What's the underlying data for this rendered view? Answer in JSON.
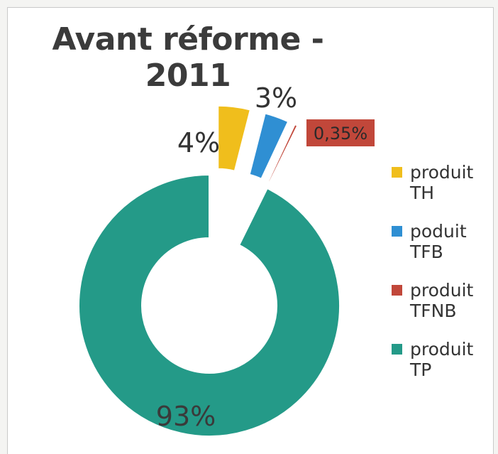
{
  "chart_data": {
    "type": "pie",
    "style": "donut",
    "title": "Avant réforme - 2011",
    "categories": [
      "produit TH",
      "poduit TFB",
      "produit TFNB",
      "produit TP"
    ],
    "values": [
      4,
      3,
      0.35,
      93
    ],
    "data_labels": [
      "4%",
      "3%",
      "0,35%",
      "93%"
    ],
    "colors": [
      "#f0be1c",
      "#2f8fd3",
      "#c1473a",
      "#249a88"
    ],
    "exploded": [
      true,
      true,
      true,
      false
    ],
    "legend_position": "right"
  }
}
